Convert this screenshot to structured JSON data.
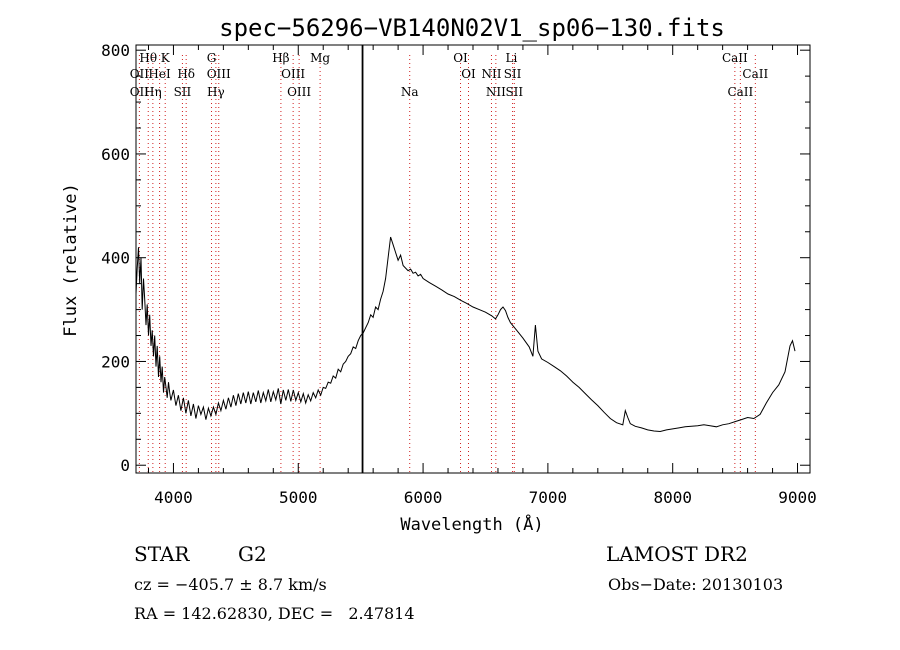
{
  "chart_data": {
    "type": "line",
    "title": "spec−56296−VB140N02V1_sp06−130.fits",
    "xlabel": "Wavelength (Å)",
    "ylabel": "Flux (relative)",
    "xlim": [
      3700,
      9100
    ],
    "ylim": [
      -15,
      810
    ],
    "x_ticks": [
      4000,
      5000,
      6000,
      7000,
      8000,
      9000
    ],
    "y_ticks": [
      0,
      200,
      400,
      600,
      800
    ],
    "grid": false,
    "line_color": "#000000",
    "line_marker_color": "#d02020",
    "series": [
      {
        "values": [
          [
            3700,
            330
          ],
          [
            3710,
            380
          ],
          [
            3720,
            420
          ],
          [
            3730,
            350
          ],
          [
            3740,
            400
          ],
          [
            3750,
            300
          ],
          [
            3760,
            360
          ],
          [
            3770,
            320
          ],
          [
            3780,
            270
          ],
          [
            3790,
            310
          ],
          [
            3800,
            250
          ],
          [
            3810,
            290
          ],
          [
            3820,
            230
          ],
          [
            3830,
            260
          ],
          [
            3840,
            210
          ],
          [
            3850,
            250
          ],
          [
            3860,
            190
          ],
          [
            3870,
            230
          ],
          [
            3880,
            170
          ],
          [
            3890,
            210
          ],
          [
            3900,
            160
          ],
          [
            3910,
            190
          ],
          [
            3920,
            140
          ],
          [
            3930,
            170
          ],
          [
            3940,
            150
          ],
          [
            3950,
            130
          ],
          [
            3960,
            160
          ],
          [
            3970,
            140
          ],
          [
            3980,
            125
          ],
          [
            4000,
            145
          ],
          [
            4020,
            115
          ],
          [
            4040,
            135
          ],
          [
            4060,
            105
          ],
          [
            4080,
            130
          ],
          [
            4100,
            100
          ],
          [
            4120,
            125
          ],
          [
            4140,
            95
          ],
          [
            4160,
            118
          ],
          [
            4180,
            90
          ],
          [
            4200,
            115
          ],
          [
            4220,
            98
          ],
          [
            4240,
            112
          ],
          [
            4260,
            88
          ],
          [
            4280,
            110
          ],
          [
            4300,
            95
          ],
          [
            4320,
            112
          ],
          [
            4340,
            98
          ],
          [
            4360,
            120
          ],
          [
            4380,
            105
          ],
          [
            4400,
            125
          ],
          [
            4420,
            108
          ],
          [
            4440,
            130
          ],
          [
            4460,
            112
          ],
          [
            4480,
            135
          ],
          [
            4500,
            115
          ],
          [
            4520,
            138
          ],
          [
            4540,
            118
          ],
          [
            4560,
            140
          ],
          [
            4580,
            120
          ],
          [
            4600,
            142
          ],
          [
            4620,
            118
          ],
          [
            4640,
            140
          ],
          [
            4660,
            122
          ],
          [
            4680,
            144
          ],
          [
            4700,
            120
          ],
          [
            4720,
            140
          ],
          [
            4740,
            124
          ],
          [
            4760,
            146
          ],
          [
            4780,
            122
          ],
          [
            4800,
            142
          ],
          [
            4820,
            126
          ],
          [
            4840,
            148
          ],
          [
            4860,
            118
          ],
          [
            4880,
            145
          ],
          [
            4900,
            125
          ],
          [
            4920,
            146
          ],
          [
            4940,
            123
          ],
          [
            4960,
            145
          ],
          [
            4980,
            125
          ],
          [
            5000,
            140
          ],
          [
            5020,
            122
          ],
          [
            5040,
            138
          ],
          [
            5060,
            120
          ],
          [
            5080,
            136
          ],
          [
            5100,
            124
          ],
          [
            5120,
            140
          ],
          [
            5140,
            130
          ],
          [
            5160,
            145
          ],
          [
            5180,
            135
          ],
          [
            5200,
            150
          ],
          [
            5220,
            148
          ],
          [
            5240,
            160
          ],
          [
            5260,
            158
          ],
          [
            5280,
            172
          ],
          [
            5300,
            168
          ],
          [
            5320,
            185
          ],
          [
            5340,
            180
          ],
          [
            5360,
            195
          ],
          [
            5380,
            200
          ],
          [
            5400,
            210
          ],
          [
            5420,
            215
          ],
          [
            5440,
            228
          ],
          [
            5460,
            225
          ],
          [
            5480,
            240
          ],
          [
            5500,
            250
          ],
          [
            5520,
            255
          ],
          [
            5540,
            265
          ],
          [
            5560,
            275
          ],
          [
            5580,
            290
          ],
          [
            5600,
            285
          ],
          [
            5620,
            305
          ],
          [
            5640,
            300
          ],
          [
            5660,
            320
          ],
          [
            5680,
            335
          ],
          [
            5700,
            360
          ],
          [
            5720,
            400
          ],
          [
            5740,
            440
          ],
          [
            5760,
            425
          ],
          [
            5780,
            410
          ],
          [
            5800,
            395
          ],
          [
            5820,
            405
          ],
          [
            5840,
            385
          ],
          [
            5860,
            380
          ],
          [
            5880,
            375
          ],
          [
            5900,
            378
          ],
          [
            5920,
            370
          ],
          [
            5940,
            372
          ],
          [
            5960,
            365
          ],
          [
            5980,
            368
          ],
          [
            6000,
            360
          ],
          [
            6050,
            352
          ],
          [
            6100,
            345
          ],
          [
            6150,
            338
          ],
          [
            6200,
            330
          ],
          [
            6250,
            325
          ],
          [
            6300,
            318
          ],
          [
            6350,
            312
          ],
          [
            6400,
            305
          ],
          [
            6450,
            300
          ],
          [
            6500,
            295
          ],
          [
            6550,
            288
          ],
          [
            6580,
            282
          ],
          [
            6600,
            290
          ],
          [
            6620,
            300
          ],
          [
            6640,
            305
          ],
          [
            6660,
            298
          ],
          [
            6680,
            285
          ],
          [
            6700,
            275
          ],
          [
            6750,
            260
          ],
          [
            6800,
            245
          ],
          [
            6850,
            228
          ],
          [
            6880,
            210
          ],
          [
            6900,
            270
          ],
          [
            6920,
            220
          ],
          [
            6950,
            205
          ],
          [
            7000,
            198
          ],
          [
            7050,
            190
          ],
          [
            7100,
            182
          ],
          [
            7150,
            172
          ],
          [
            7200,
            160
          ],
          [
            7250,
            150
          ],
          [
            7300,
            138
          ],
          [
            7350,
            126
          ],
          [
            7400,
            115
          ],
          [
            7450,
            102
          ],
          [
            7500,
            90
          ],
          [
            7550,
            82
          ],
          [
            7600,
            78
          ],
          [
            7620,
            105
          ],
          [
            7640,
            92
          ],
          [
            7660,
            80
          ],
          [
            7700,
            75
          ],
          [
            7750,
            72
          ],
          [
            7800,
            68
          ],
          [
            7850,
            66
          ],
          [
            7900,
            65
          ],
          [
            7950,
            68
          ],
          [
            8000,
            70
          ],
          [
            8050,
            72
          ],
          [
            8100,
            74
          ],
          [
            8150,
            75
          ],
          [
            8200,
            76
          ],
          [
            8250,
            78
          ],
          [
            8300,
            76
          ],
          [
            8350,
            74
          ],
          [
            8400,
            78
          ],
          [
            8450,
            80
          ],
          [
            8500,
            84
          ],
          [
            8550,
            88
          ],
          [
            8600,
            92
          ],
          [
            8650,
            90
          ],
          [
            8700,
            98
          ],
          [
            8750,
            120
          ],
          [
            8800,
            140
          ],
          [
            8850,
            155
          ],
          [
            8900,
            180
          ],
          [
            8940,
            230
          ],
          [
            8960,
            240
          ],
          [
            8980,
            220
          ]
        ]
      }
    ],
    "vertical_marker": {
      "x": 5515
    },
    "line_labels": [
      {
        "text": "Hθ",
        "x": 3798,
        "row": 1
      },
      {
        "text": "OII",
        "x": 3727,
        "row": 2
      },
      {
        "text": "OII",
        "x": 3727,
        "row": 3
      },
      {
        "text": "K",
        "x": 3934,
        "row": 1
      },
      {
        "text": "HeI",
        "x": 3889,
        "row": 2
      },
      {
        "text": "Hη",
        "x": 3835,
        "row": 3
      },
      {
        "text": "Hδ",
        "x": 4102,
        "row": 2
      },
      {
        "text": "SII",
        "x": 4072,
        "row": 3
      },
      {
        "text": "G",
        "x": 4305,
        "row": 1
      },
      {
        "text": "OIII",
        "x": 4363,
        "row": 2
      },
      {
        "text": "Hγ",
        "x": 4340,
        "row": 3
      },
      {
        "text": "Hβ",
        "x": 4861,
        "row": 1
      },
      {
        "text": "OIII",
        "x": 4959,
        "row": 2
      },
      {
        "text": "OIII",
        "x": 5007,
        "row": 3
      },
      {
        "text": "Mg",
        "x": 5175,
        "row": 1
      },
      {
        "text": "Na",
        "x": 5893,
        "row": 3
      },
      {
        "text": "OI",
        "x": 6300,
        "row": 1
      },
      {
        "text": "OI",
        "x": 6364,
        "row": 2
      },
      {
        "text": "Li",
        "x": 6708,
        "row": 1
      },
      {
        "text": "NII",
        "x": 6548,
        "row": 2
      },
      {
        "text": "SII",
        "x": 6717,
        "row": 2
      },
      {
        "text": "NII",
        "x": 6583,
        "row": 3
      },
      {
        "text": "SII",
        "x": 6731,
        "row": 3
      },
      {
        "text": "CaII",
        "x": 8498,
        "row": 1
      },
      {
        "text": "CaII",
        "x": 8662,
        "row": 2
      },
      {
        "text": "CaII",
        "x": 8542,
        "row": 3
      }
    ],
    "line_marker_positions": [
      3727,
      3798,
      3835,
      3889,
      3934,
      4072,
      4102,
      4305,
      4340,
      4363,
      4861,
      4959,
      5007,
      5175,
      5893,
      6300,
      6364,
      6548,
      6583,
      6717,
      6731,
      8498,
      8542,
      8662
    ]
  },
  "info": {
    "object_class": "STAR",
    "subclass": "G2",
    "survey": "LAMOST DR2",
    "cz": "cz = −405.7 ± 8.7 km/s",
    "obs_date": "Obs−Date: 20130103",
    "radec": "RA = 142.62830, DEC =   2.47814"
  }
}
